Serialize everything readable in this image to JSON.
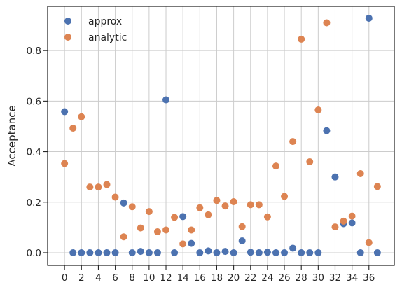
{
  "chart_data": {
    "type": "scatter",
    "title": "",
    "xlabel": "",
    "ylabel": "Acceptance",
    "xlim": [
      -2,
      39
    ],
    "ylim": [
      -0.05,
      0.975
    ],
    "xticks": [
      0,
      2,
      4,
      6,
      8,
      10,
      12,
      14,
      16,
      18,
      20,
      22,
      24,
      26,
      28,
      30,
      32,
      34,
      36
    ],
    "yticks": [
      0.0,
      0.2,
      0.4,
      0.6,
      0.8
    ],
    "ytick_labels": [
      "0.0",
      "0.2",
      "0.4",
      "0.6",
      "0.8"
    ],
    "grid": true,
    "legend_position": "top-left",
    "series": [
      {
        "name": "approx",
        "color": "#4c72b0",
        "x": [
          0,
          1,
          2,
          3,
          4,
          5,
          6,
          7,
          8,
          9,
          10,
          11,
          12,
          13,
          14,
          15,
          16,
          17,
          18,
          19,
          20,
          21,
          22,
          23,
          24,
          25,
          26,
          27,
          28,
          29,
          30,
          31,
          32,
          33,
          34,
          35,
          36,
          37
        ],
        "values": [
          0.558,
          0.0,
          0.0,
          0.0,
          0.0,
          0.0,
          0.0,
          0.197,
          0.0,
          0.005,
          0.0,
          0.0,
          0.605,
          0.0,
          0.143,
          0.037,
          0.0,
          0.007,
          0.0,
          0.005,
          0.0,
          0.047,
          0.002,
          0.0,
          0.002,
          0.0,
          0.0,
          0.018,
          0.0,
          0.0,
          0.0,
          0.483,
          0.3,
          0.115,
          0.118,
          0.0,
          0.928,
          0.0
        ]
      },
      {
        "name": "analytic",
        "color": "#dd8452",
        "x": [
          0,
          1,
          2,
          3,
          4,
          5,
          6,
          7,
          8,
          9,
          10,
          11,
          12,
          13,
          14,
          15,
          16,
          17,
          18,
          19,
          20,
          21,
          22,
          23,
          24,
          25,
          26,
          27,
          28,
          29,
          30,
          31,
          32,
          33,
          34,
          35,
          36,
          37
        ],
        "values": [
          0.353,
          0.493,
          0.538,
          0.26,
          0.26,
          0.27,
          0.22,
          0.063,
          0.182,
          0.098,
          0.163,
          0.083,
          0.09,
          0.14,
          0.035,
          0.09,
          0.178,
          0.15,
          0.207,
          0.185,
          0.202,
          0.103,
          0.19,
          0.19,
          0.142,
          0.343,
          0.223,
          0.44,
          0.845,
          0.36,
          0.565,
          0.91,
          0.102,
          0.125,
          0.145,
          0.313,
          0.04,
          0.262
        ]
      }
    ]
  }
}
